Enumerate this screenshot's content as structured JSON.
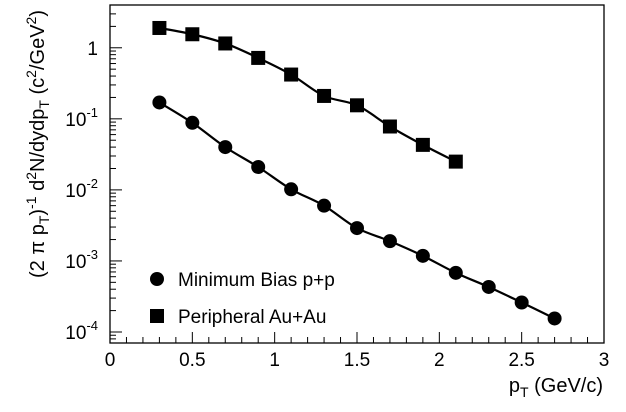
{
  "chart_data": {
    "type": "scatter",
    "x": {
      "label_main": "p",
      "label_sub": "T",
      "label_unit": " (GeV/c)",
      "lim": [
        0,
        3
      ],
      "scale": "linear",
      "ticks": [
        0,
        0.5,
        1,
        1.5,
        2,
        2.5,
        3
      ],
      "tick_labels": [
        "0",
        "0.5",
        "1",
        "1.5",
        "2",
        "2.5",
        "3"
      ]
    },
    "y": {
      "label_parts": [
        "(2 π p",
        "T",
        ")",
        "-1",
        " d",
        "2",
        "N/dydp",
        "T",
        " (c",
        "2",
        "/GeV",
        "2",
        ")"
      ],
      "lim": [
        7e-05,
        4
      ],
      "scale": "log",
      "ticks": [
        {
          "value": 1,
          "base": "1",
          "exp": ""
        },
        {
          "value": 0.1,
          "base": "10",
          "exp": "-1"
        },
        {
          "value": 0.01,
          "base": "10",
          "exp": "-2"
        },
        {
          "value": 0.001,
          "base": "10",
          "exp": "-3"
        },
        {
          "value": 0.0001,
          "base": "10",
          "exp": "-4"
        }
      ]
    },
    "legend": {
      "placement": "bottom-left"
    },
    "series": [
      {
        "name": "Minimum Bias p+p",
        "marker": "circle",
        "x": [
          0.3,
          0.5,
          0.7,
          0.9,
          1.1,
          1.3,
          1.5,
          1.7,
          1.9,
          2.1,
          2.3,
          2.5,
          2.7
        ],
        "y": [
          0.17,
          0.088,
          0.04,
          0.021,
          0.0102,
          0.006,
          0.0029,
          0.0019,
          0.00118,
          0.00068,
          0.00043,
          0.00026,
          0.000155
        ]
      },
      {
        "name": "Peripheral Au+Au",
        "marker": "square",
        "x": [
          0.3,
          0.5,
          0.7,
          0.9,
          1.1,
          1.3,
          1.5,
          1.7,
          1.9,
          2.1
        ],
        "y": [
          1.9,
          1.55,
          1.15,
          0.72,
          0.42,
          0.21,
          0.155,
          0.078,
          0.043,
          0.025
        ]
      }
    ],
    "fit_curves": true
  }
}
